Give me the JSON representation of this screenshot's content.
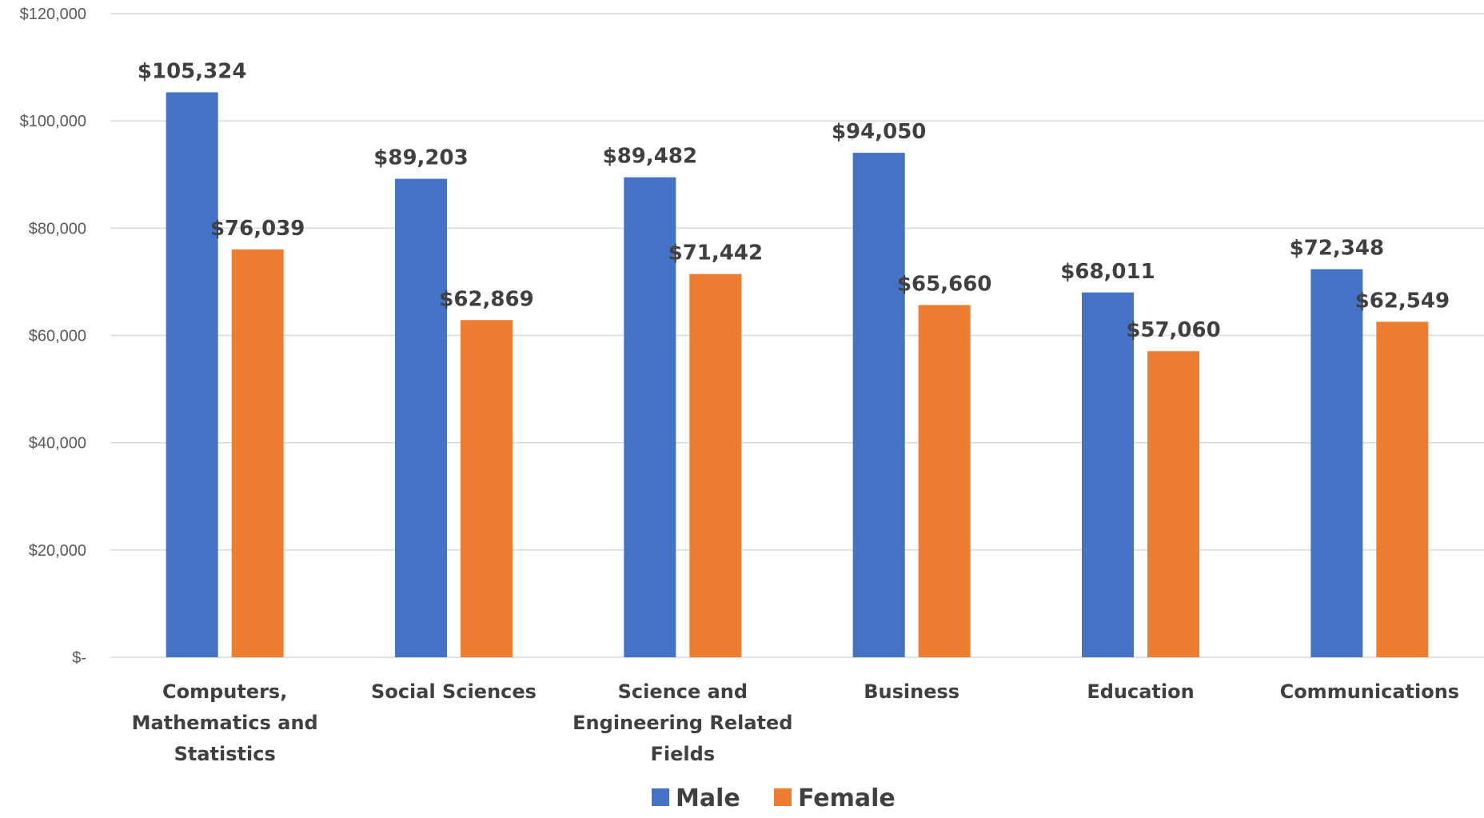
{
  "chart_data": {
    "type": "bar",
    "categories": [
      [
        "Computers,",
        "Mathematics and",
        "Statistics"
      ],
      [
        "Social Sciences"
      ],
      [
        "Science and",
        "Engineering Related",
        "Fields"
      ],
      [
        "Business"
      ],
      [
        "Education"
      ],
      [
        "Communications"
      ]
    ],
    "series": [
      {
        "name": "Male",
        "color": "#4472C4",
        "values": [
          105324,
          89203,
          89482,
          94050,
          68011,
          72348
        ],
        "labels": [
          "$105,324",
          "$89,203",
          "$89,482",
          "$94,050",
          "$68,011",
          "$72,348"
        ]
      },
      {
        "name": "Female",
        "color": "#ED7D31",
        "values": [
          76039,
          62869,
          71442,
          65660,
          57060,
          62549
        ],
        "labels": [
          "$76,039",
          "$62,869",
          "$71,442",
          "$65,660",
          "$57,060",
          "$62,549"
        ]
      }
    ],
    "ylim": [
      0,
      120000
    ],
    "yticks": [
      {
        "value": 0,
        "label": "$-"
      },
      {
        "value": 20000,
        "label": "$20,000"
      },
      {
        "value": 40000,
        "label": "$40,000"
      },
      {
        "value": 60000,
        "label": "$60,000"
      },
      {
        "value": 80000,
        "label": "$80,000"
      },
      {
        "value": 100000,
        "label": "$100,000"
      },
      {
        "value": 120000,
        "label": "$120,000"
      }
    ],
    "grid": true,
    "legend_position": "bottom-center",
    "title": "",
    "xlabel": "",
    "ylabel": ""
  }
}
